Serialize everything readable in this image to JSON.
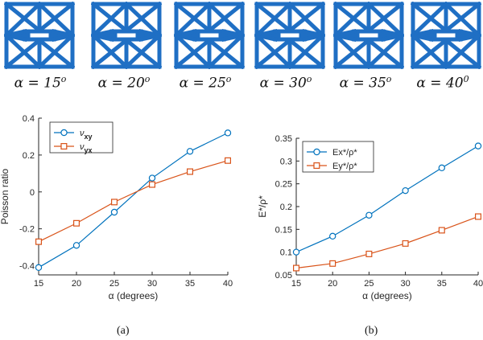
{
  "lattice_labels": [
    "α = 15",
    "α = 20",
    "α = 25",
    "α = 30",
    "α = 35",
    "α = 40"
  ],
  "lattice_superscripts": [
    "o",
    "o",
    "o",
    "o",
    "o",
    "0"
  ],
  "colors": {
    "blue": "#0072BD",
    "orange": "#D95319",
    "lattice": "#1F6FC4"
  },
  "chart_data": [
    {
      "type": "line",
      "caption": "(a)",
      "xlabel": "α (degrees)",
      "ylabel": "Poisson ratio",
      "x": [
        15,
        20,
        25,
        30,
        35,
        40
      ],
      "xlim": [
        15,
        40
      ],
      "ylim": [
        -0.45,
        0.4
      ],
      "yticks": [
        -0.4,
        -0.2,
        0,
        0.2,
        0.4
      ],
      "ytick_labels": [
        "-0.4",
        "-0.2",
        "0",
        "0.2",
        "0.4"
      ],
      "legend_position": "top-left",
      "series": [
        {
          "name": "ν",
          "sub": "xy",
          "marker": "circle",
          "values": [
            -0.41,
            -0.29,
            -0.11,
            0.075,
            0.22,
            0.32
          ]
        },
        {
          "name": "ν",
          "sub": "yx",
          "marker": "square",
          "values": [
            -0.27,
            -0.17,
            -0.055,
            0.04,
            0.11,
            0.17
          ]
        }
      ]
    },
    {
      "type": "line",
      "caption": "(b)",
      "xlabel": "α (degrees)",
      "ylabel": "E*/ρ*",
      "x": [
        15,
        20,
        25,
        30,
        35,
        40
      ],
      "xlim": [
        15,
        40
      ],
      "ylim": [
        0.05,
        0.35
      ],
      "yticks": [
        0.05,
        0.1,
        0.15,
        0.2,
        0.25,
        0.3,
        0.35
      ],
      "ytick_labels": [
        "0.05",
        "0.1",
        "0.15",
        "0.2",
        "0.25",
        "0.3",
        "0.35"
      ],
      "legend_position": "top-left",
      "series": [
        {
          "name": "Ex*/ρ*",
          "marker": "circle",
          "values": [
            0.1,
            0.135,
            0.181,
            0.235,
            0.285,
            0.333
          ]
        },
        {
          "name": "Ey*/ρ*",
          "marker": "square",
          "values": [
            0.065,
            0.075,
            0.096,
            0.119,
            0.148,
            0.178
          ]
        }
      ]
    }
  ]
}
